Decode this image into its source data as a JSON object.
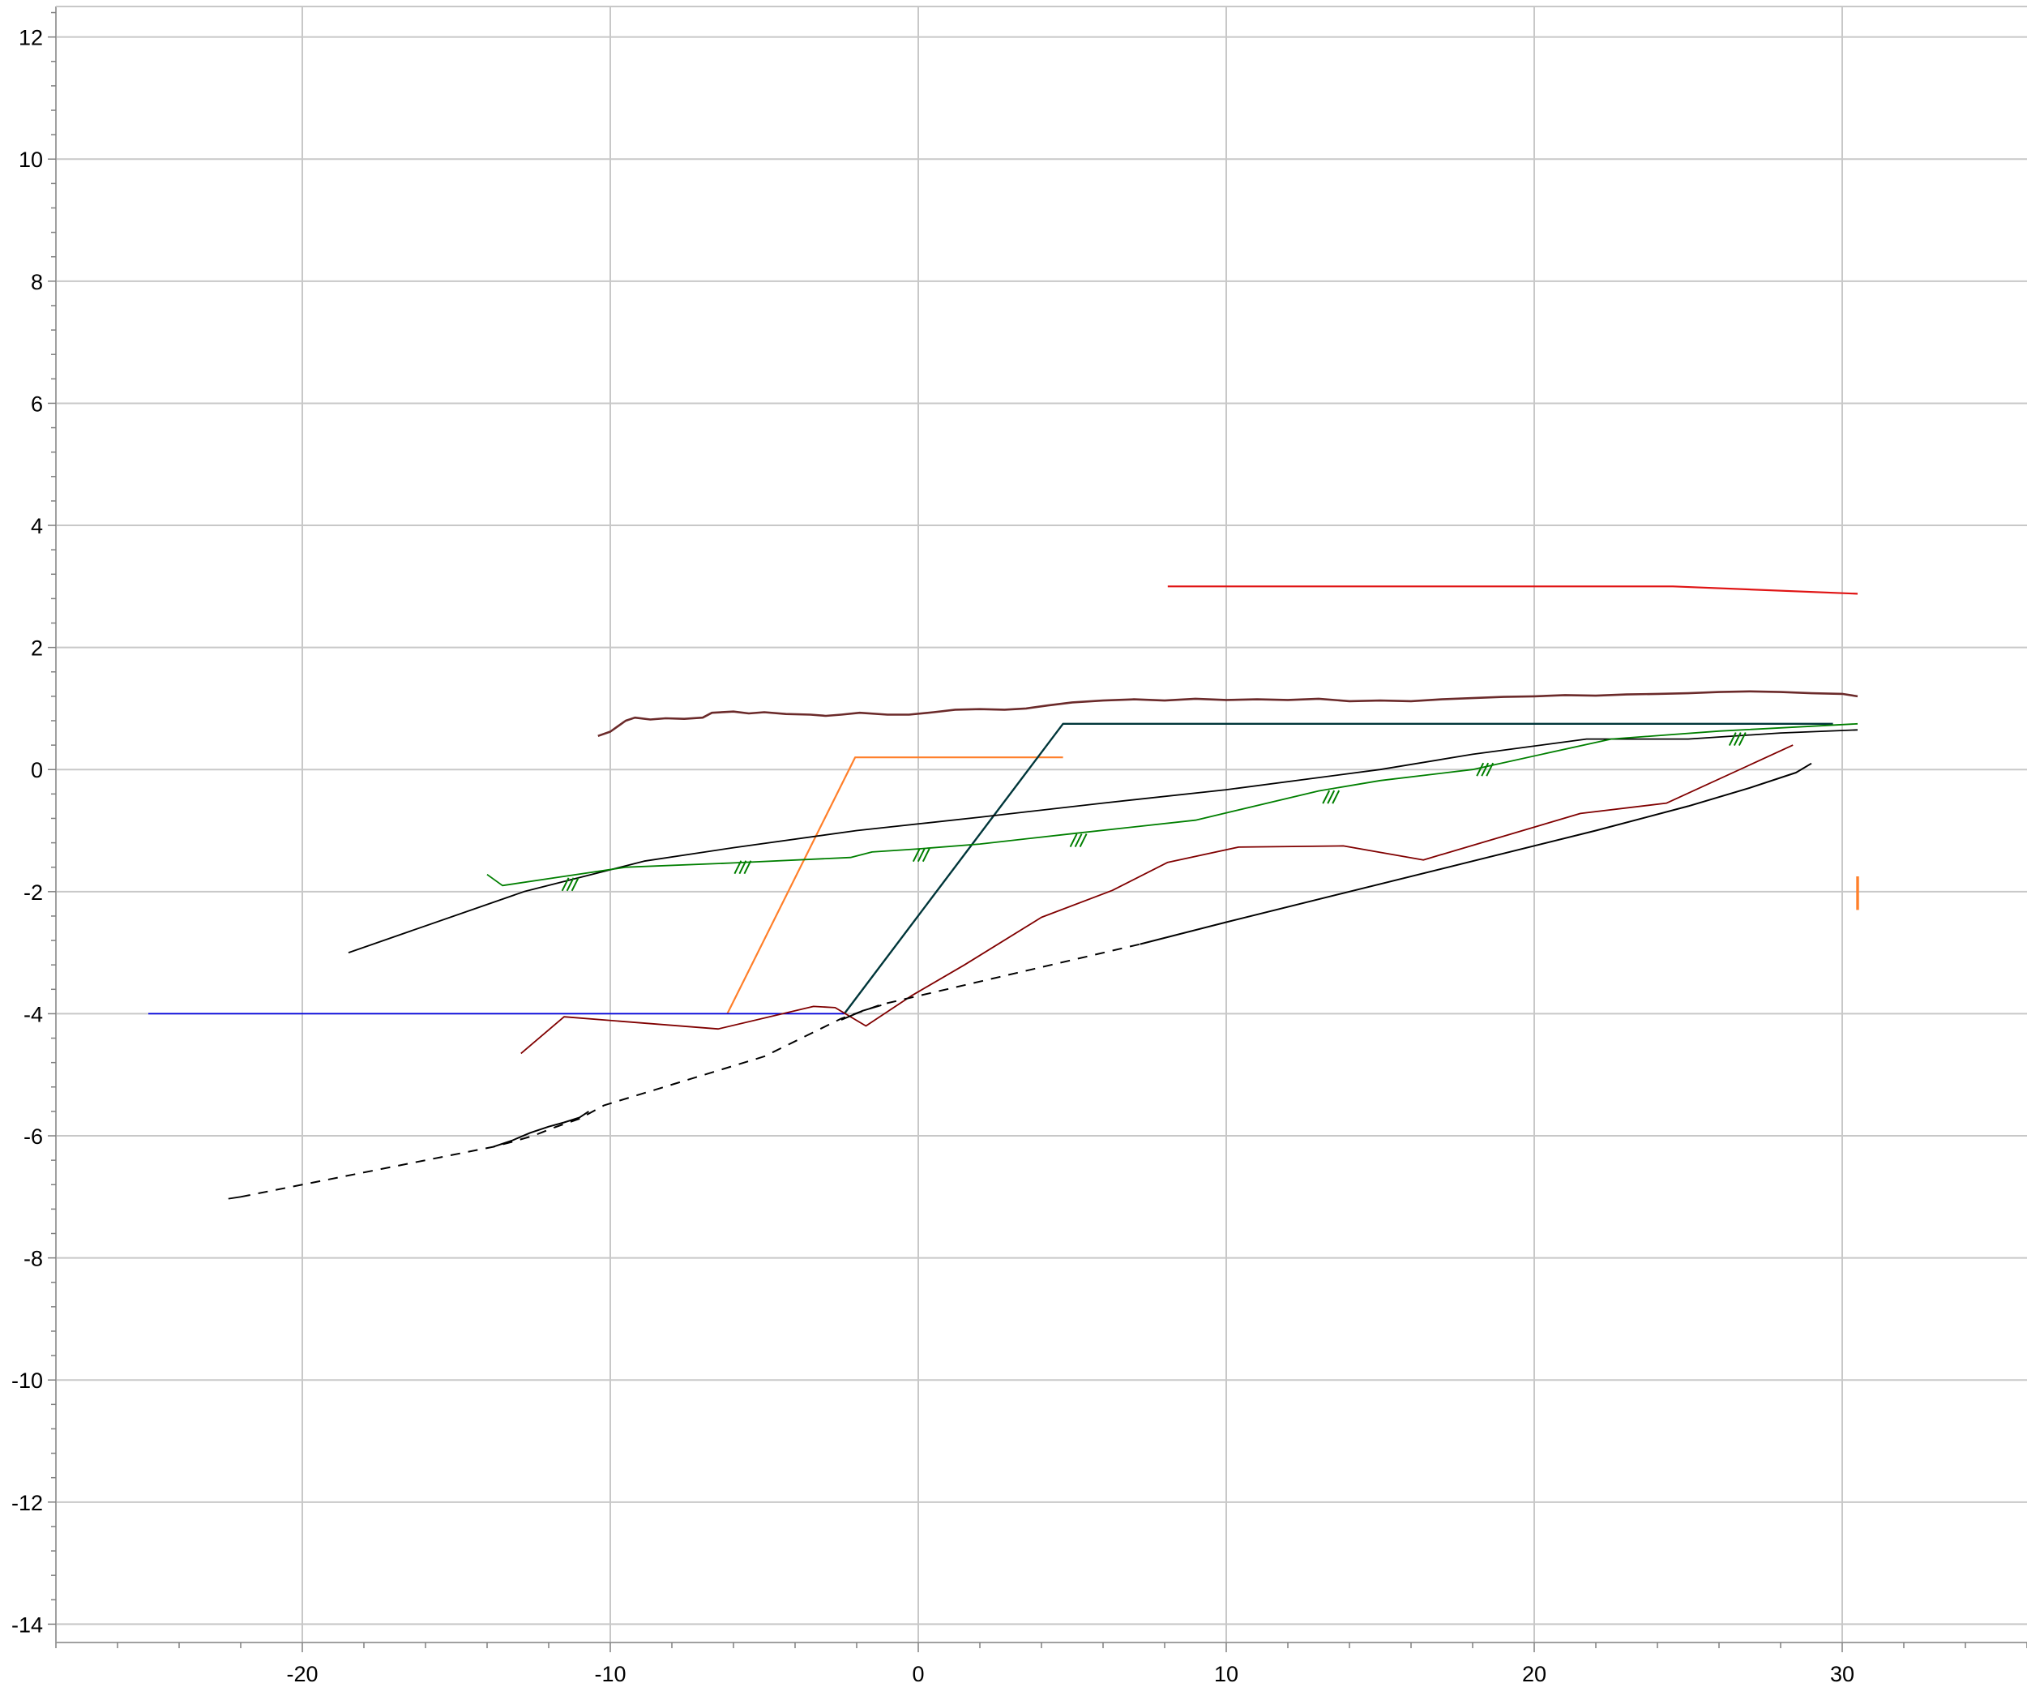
{
  "chart_data": {
    "type": "line",
    "title": "",
    "xlabel": "",
    "ylabel": "",
    "xlim": [
      -28,
      36
    ],
    "ylim": [
      -14.3,
      12.5
    ],
    "grid": true,
    "x_ticks": [
      -20,
      -10,
      0,
      10,
      20,
      30
    ],
    "x_tick_labels": [
      "-20",
      "-10",
      "0",
      "10",
      "20",
      "30"
    ],
    "y_ticks": [
      12,
      10,
      8,
      6,
      4,
      2,
      0,
      -2,
      -4,
      -6,
      -8,
      -10,
      -12,
      -14
    ],
    "y_tick_labels": [
      "12",
      "10",
      "8",
      "6",
      "4",
      "2",
      "0",
      "-2",
      "-4",
      "-6",
      "-8",
      "-10",
      "-12",
      "-14"
    ],
    "series": [
      {
        "color": "#e01414",
        "width": 2.2,
        "dash": "",
        "points": [
          [
            8.1,
            3.0
          ],
          [
            24.5,
            3.0
          ],
          [
            30.5,
            2.88
          ]
        ]
      },
      {
        "color": "#6b2a2a",
        "width": 2.6,
        "dash": "",
        "points": [
          [
            -10.4,
            0.55
          ],
          [
            -10.0,
            0.62
          ],
          [
            -9.5,
            0.8
          ],
          [
            -9.2,
            0.85
          ],
          [
            -8.7,
            0.82
          ],
          [
            -8.2,
            0.84
          ],
          [
            -7.6,
            0.83
          ],
          [
            -7.0,
            0.85
          ],
          [
            -6.7,
            0.93
          ],
          [
            -6.0,
            0.95
          ],
          [
            -5.5,
            0.92
          ],
          [
            -5.0,
            0.94
          ],
          [
            -4.3,
            0.91
          ],
          [
            -3.5,
            0.9
          ],
          [
            -3.0,
            0.88
          ],
          [
            -2.5,
            0.9
          ],
          [
            -1.9,
            0.93
          ],
          [
            -1.0,
            0.9
          ],
          [
            -0.3,
            0.9
          ],
          [
            0.5,
            0.94
          ],
          [
            1.2,
            0.98
          ],
          [
            2.0,
            0.99
          ],
          [
            2.8,
            0.98
          ],
          [
            3.5,
            1.0
          ],
          [
            4.2,
            1.05
          ],
          [
            5.0,
            1.1
          ],
          [
            6.0,
            1.13
          ],
          [
            7.0,
            1.15
          ],
          [
            8.0,
            1.13
          ],
          [
            9.0,
            1.16
          ],
          [
            10.0,
            1.14
          ],
          [
            11.0,
            1.15
          ],
          [
            12.0,
            1.14
          ],
          [
            13.0,
            1.16
          ],
          [
            14.0,
            1.12
          ],
          [
            15.0,
            1.13
          ],
          [
            16.0,
            1.12
          ],
          [
            17.0,
            1.15
          ],
          [
            18.0,
            1.17
          ],
          [
            19.0,
            1.19
          ],
          [
            20.0,
            1.2
          ],
          [
            21.0,
            1.22
          ],
          [
            22.0,
            1.21
          ],
          [
            23.0,
            1.23
          ],
          [
            24.0,
            1.24
          ],
          [
            25.0,
            1.25
          ],
          [
            26.0,
            1.27
          ],
          [
            27.0,
            1.28
          ],
          [
            28.0,
            1.27
          ],
          [
            29.0,
            1.25
          ],
          [
            30.0,
            1.24
          ],
          [
            30.5,
            1.2
          ]
        ]
      },
      {
        "color": "#ff7f2a",
        "width": 2.2,
        "dash": "",
        "points": [
          [
            -6.2,
            -4.0
          ],
          [
            -2.05,
            0.2
          ],
          [
            4.7,
            0.2
          ]
        ]
      },
      {
        "color": "#ff7f2a",
        "width": 3.4,
        "dash": "",
        "points": [
          [
            30.5,
            -1.75
          ],
          [
            30.5,
            -2.3
          ]
        ]
      },
      {
        "color": "#00363a",
        "width": 2.4,
        "dash": "",
        "points": [
          [
            -2.4,
            -4.0
          ],
          [
            4.7,
            0.75
          ],
          [
            29.7,
            0.75
          ]
        ]
      },
      {
        "color": "#0000dd",
        "width": 1.8,
        "dash": "",
        "points": [
          [
            -25.0,
            -4.0
          ],
          [
            -2.4,
            -4.0
          ]
        ]
      },
      {
        "color": "#000000",
        "width": 1.8,
        "dash": "",
        "points": [
          [
            -18.5,
            -3.0
          ],
          [
            -12.8,
            -2.0
          ],
          [
            -8.9,
            -1.5
          ],
          [
            -6.0,
            -1.28
          ],
          [
            -2.0,
            -1.0
          ],
          [
            2.0,
            -0.78
          ],
          [
            6.0,
            -0.55
          ],
          [
            10.0,
            -0.33
          ],
          [
            15.0,
            0.0
          ],
          [
            18.0,
            0.25
          ],
          [
            21.7,
            0.5
          ],
          [
            25.0,
            0.5
          ],
          [
            28.0,
            0.6
          ],
          [
            30.5,
            0.65
          ]
        ]
      },
      {
        "color": "#007f00",
        "width": 1.8,
        "dash": "",
        "points": [
          [
            -14.0,
            -1.72
          ],
          [
            -13.5,
            -1.9
          ],
          [
            -11.5,
            -1.75
          ],
          [
            -9.5,
            -1.6
          ],
          [
            -6.0,
            -1.53
          ],
          [
            -2.2,
            -1.44
          ],
          [
            -1.5,
            -1.35
          ],
          [
            0.0,
            -1.3
          ],
          [
            2.0,
            -1.22
          ],
          [
            5.0,
            -1.05
          ],
          [
            9.0,
            -0.83
          ],
          [
            13.0,
            -0.35
          ],
          [
            15.0,
            -0.18
          ],
          [
            18.0,
            0.0
          ],
          [
            22.5,
            0.5
          ],
          [
            26.0,
            0.63
          ],
          [
            30.5,
            0.75
          ]
        ]
      },
      {
        "color": "#800000",
        "width": 1.8,
        "dash": "",
        "points": [
          [
            -12.9,
            -4.65
          ],
          [
            -11.5,
            -4.05
          ],
          [
            -6.5,
            -4.25
          ],
          [
            -3.4,
            -3.88
          ],
          [
            -2.7,
            -3.9
          ],
          [
            -1.7,
            -4.2
          ],
          [
            -0.2,
            -3.7
          ],
          [
            1.5,
            -3.2
          ],
          [
            4.0,
            -2.42
          ],
          [
            6.3,
            -1.98
          ],
          [
            8.1,
            -1.52
          ],
          [
            10.4,
            -1.27
          ],
          [
            13.8,
            -1.25
          ],
          [
            16.4,
            -1.48
          ],
          [
            21.5,
            -0.72
          ],
          [
            24.3,
            -0.55
          ],
          [
            28.4,
            0.4
          ]
        ]
      },
      {
        "color": "#000000",
        "width": 1.8,
        "dash": "",
        "points": [
          [
            -22.4,
            -7.03
          ],
          [
            -22.0,
            -7.0
          ]
        ]
      },
      {
        "color": "#000000",
        "width": 2.0,
        "dash": "12,10",
        "points": [
          [
            -22.0,
            -7.0
          ],
          [
            -13.8,
            -6.18
          ],
          [
            -13.2,
            -6.1
          ],
          [
            -12.5,
            -6.0
          ],
          [
            -11.8,
            -5.86
          ],
          [
            -11.0,
            -5.72
          ],
          [
            -10.2,
            -5.5
          ],
          [
            -5.0,
            -4.7
          ],
          [
            -2.5,
            -4.08
          ],
          [
            -1.2,
            -3.85
          ],
          [
            7.2,
            -2.86
          ]
        ]
      },
      {
        "color": "#000000",
        "width": 2.0,
        "dash": "",
        "points": [
          [
            -13.8,
            -6.18
          ],
          [
            -13.2,
            -6.08
          ],
          [
            -12.6,
            -5.95
          ],
          [
            -12.0,
            -5.85
          ],
          [
            -11.5,
            -5.78
          ],
          [
            -11.0,
            -5.7
          ],
          [
            -10.7,
            -5.6
          ]
        ]
      },
      {
        "color": "#000000",
        "width": 2.0,
        "dash": "",
        "points": [
          [
            -2.5,
            -4.1
          ],
          [
            -1.8,
            -3.95
          ],
          [
            -1.2,
            -3.86
          ]
        ]
      },
      {
        "color": "#000000",
        "width": 2.0,
        "dash": "",
        "points": [
          [
            7.2,
            -2.86
          ],
          [
            10.0,
            -2.5
          ],
          [
            14.0,
            -2.0
          ],
          [
            18.0,
            -1.5
          ],
          [
            22.0,
            -1.0
          ],
          [
            25.0,
            -0.6
          ],
          [
            27.0,
            -0.3
          ],
          [
            28.5,
            -0.05
          ],
          [
            29.0,
            0.1
          ]
        ]
      }
    ],
    "hatch_marks": {
      "color": "#007f00",
      "points": [
        [
          -11.3,
          -1.88
        ],
        [
          -5.7,
          -1.6
        ],
        [
          0.1,
          -1.4
        ],
        [
          5.2,
          -1.16
        ],
        [
          13.4,
          -0.45
        ],
        [
          18.4,
          0.0
        ],
        [
          26.6,
          0.5
        ]
      ]
    }
  }
}
